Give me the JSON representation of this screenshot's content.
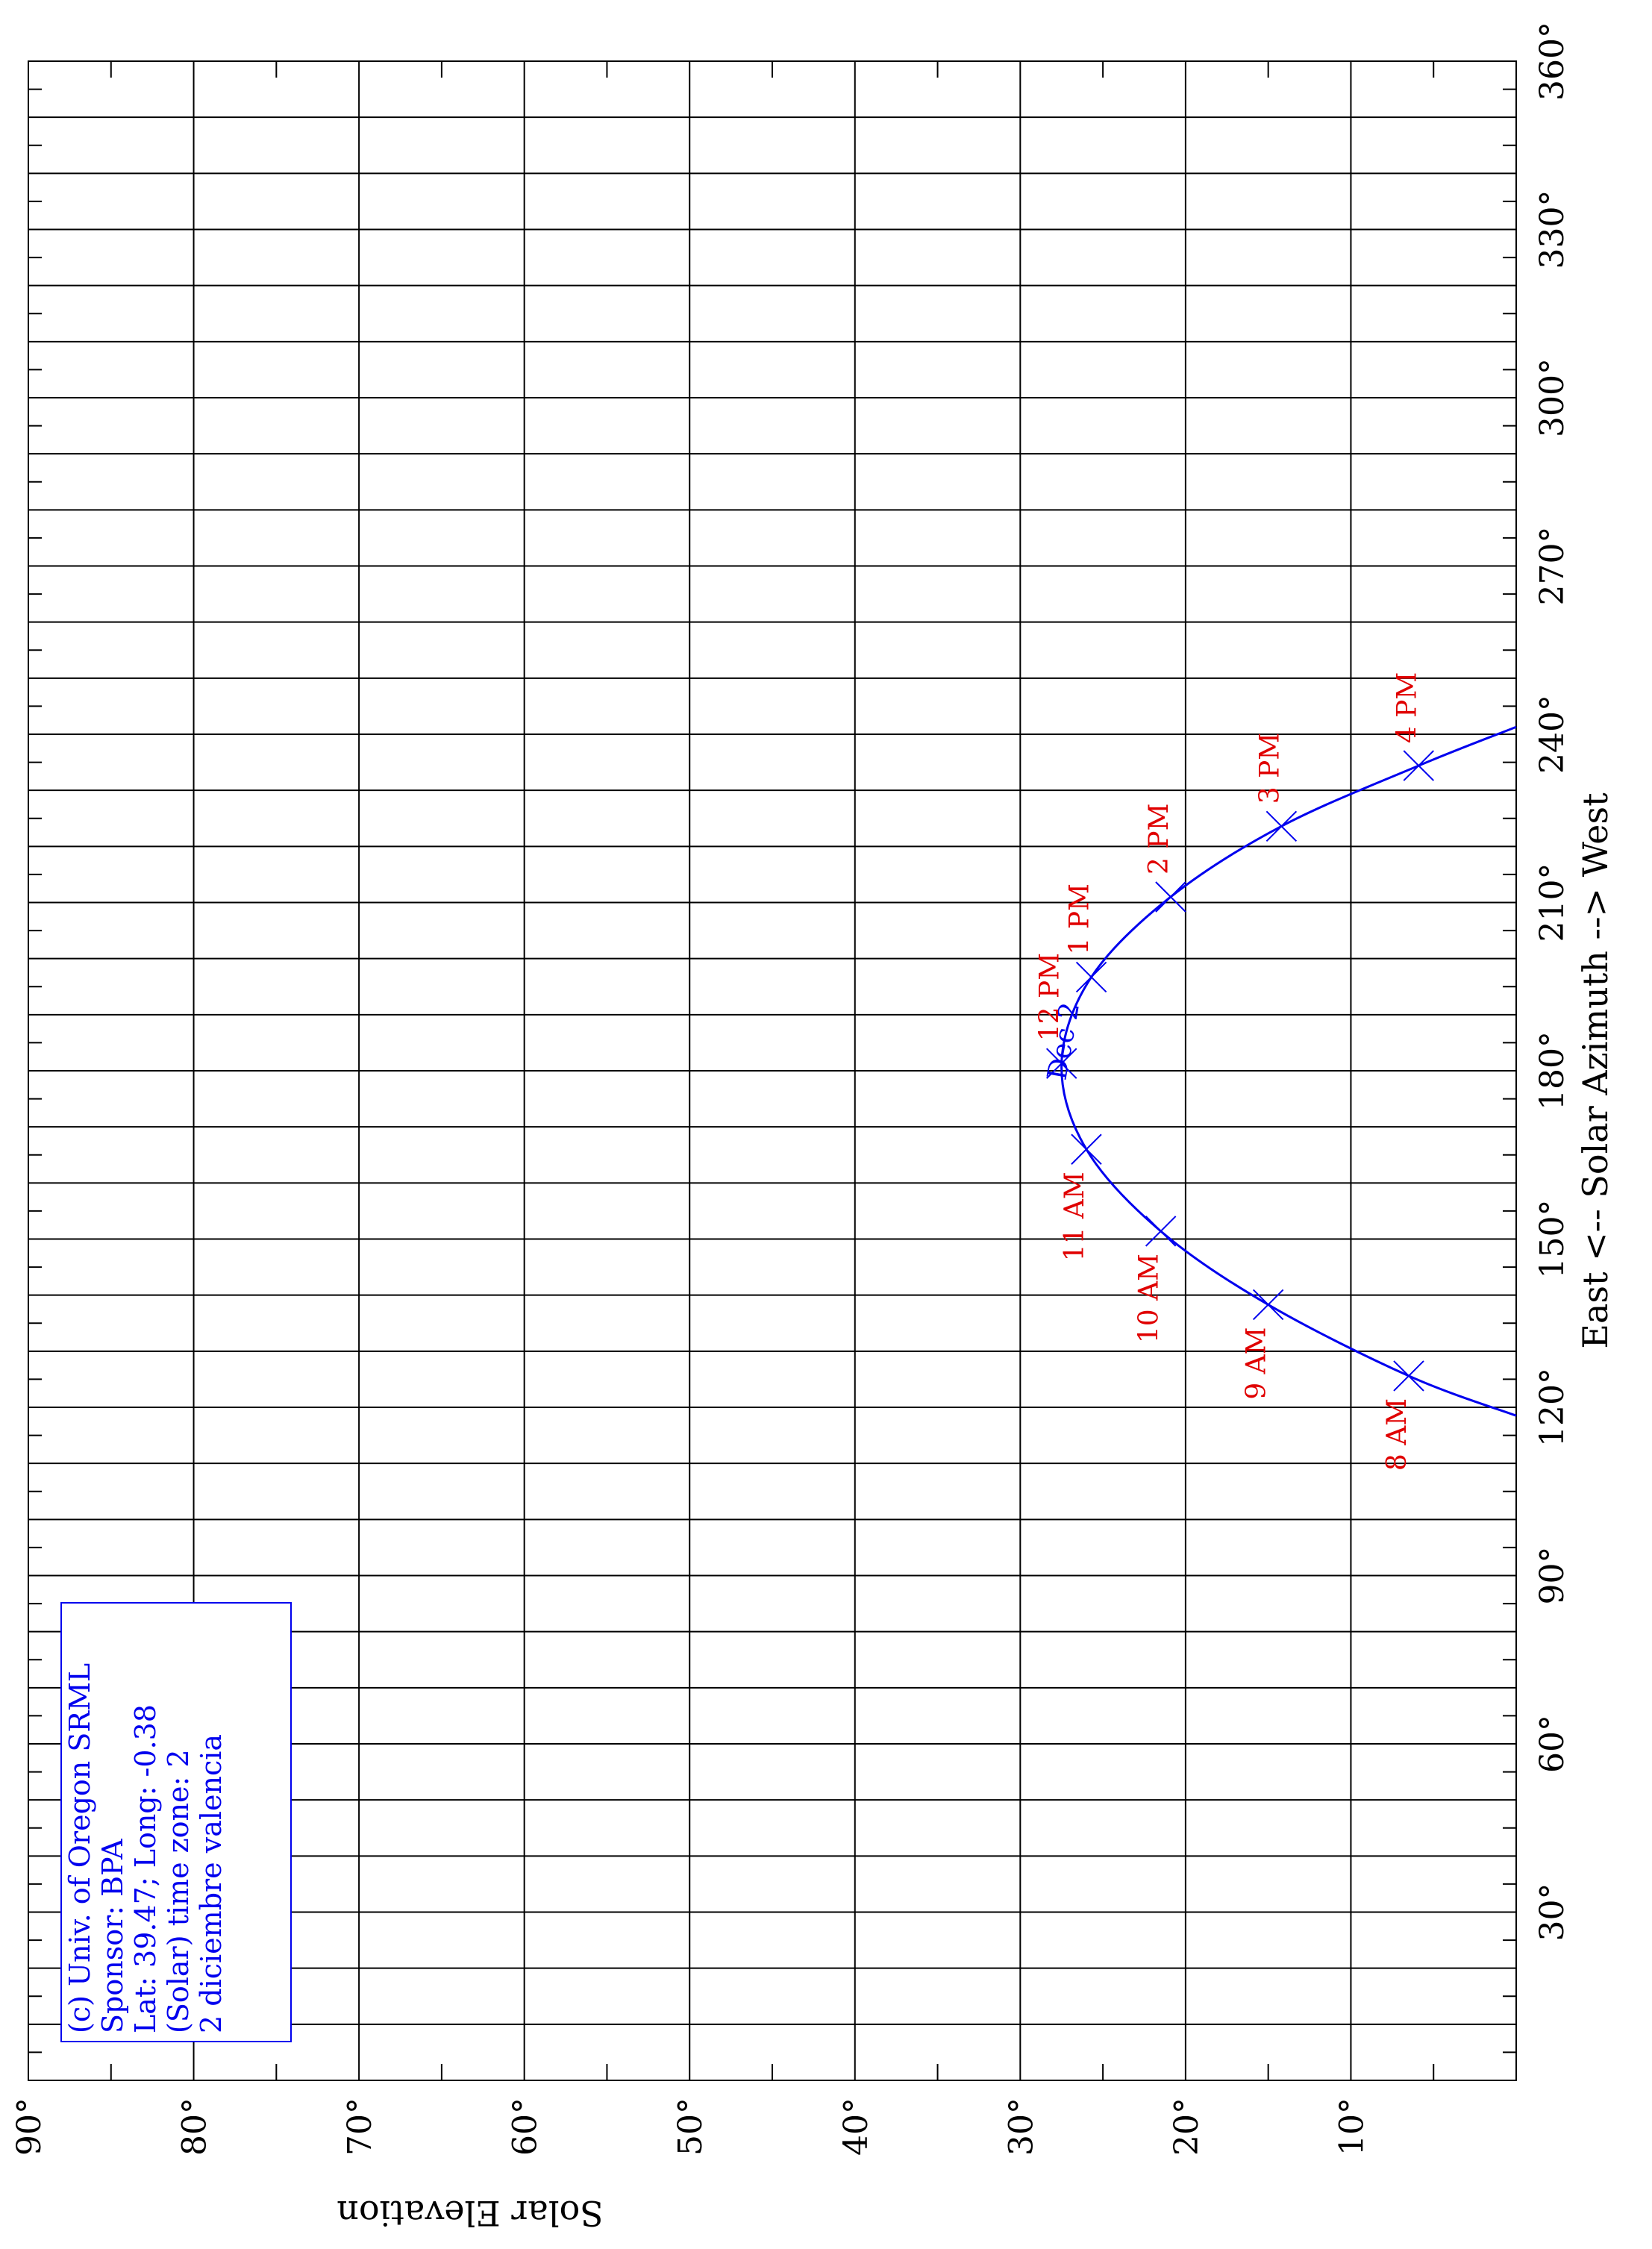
{
  "chart_data": {
    "type": "line",
    "orientation": "rotated-90",
    "x_axis": {
      "label": "East <-- Solar Azimuth --> West",
      "range": [
        0,
        360
      ],
      "ticks": [
        "30°",
        "60°",
        "90°",
        "120°",
        "150°",
        "180°",
        "210°",
        "240°",
        "270°",
        "300°",
        "330°",
        "360°"
      ],
      "tick_values": [
        30,
        60,
        90,
        120,
        150,
        180,
        210,
        240,
        270,
        300,
        330,
        360
      ]
    },
    "y_axis": {
      "label": "Solar Elevation",
      "range": [
        0,
        90
      ],
      "ticks": [
        "10°",
        "20°",
        "30°",
        "40°",
        "50°",
        "60°",
        "70°",
        "80°",
        "90°"
      ],
      "tick_values": [
        10,
        20,
        30,
        40,
        50,
        60,
        70,
        80,
        90
      ]
    },
    "grid": true,
    "series": [
      {
        "name": "Dec 2",
        "color": "#0000ee",
        "x": [
          118.5,
          125.6,
          138.3,
          151.4,
          166.0,
          181.3,
          196.7,
          211.0,
          223.6,
          234.4,
          241.3
        ],
        "y": [
          0,
          6.5,
          15.0,
          21.5,
          26.0,
          27.5,
          25.7,
          20.9,
          14.2,
          5.9,
          0
        ]
      }
    ],
    "hour_markers": [
      {
        "label": "8 AM",
        "azimuth": 125.6,
        "elevation": 6.5
      },
      {
        "label": "9 AM",
        "azimuth": 138.3,
        "elevation": 15.0
      },
      {
        "label": "10 AM",
        "azimuth": 151.4,
        "elevation": 21.5
      },
      {
        "label": "11 AM",
        "azimuth": 166.0,
        "elevation": 26.0
      },
      {
        "label": "12 PM",
        "azimuth": 181.3,
        "elevation": 27.5
      },
      {
        "label": "1 PM",
        "azimuth": 196.7,
        "elevation": 25.7
      },
      {
        "label": "2 PM",
        "azimuth": 211.0,
        "elevation": 20.9
      },
      {
        "label": "3 PM",
        "azimuth": 223.6,
        "elevation": 14.2
      },
      {
        "label": "4 PM",
        "azimuth": 234.4,
        "elevation": 5.9
      }
    ],
    "curve_label": "Dec 2",
    "info_box": [
      "(c) Univ. of Oregon SRML",
      "Sponsor: BPA",
      "Lat: 39.47; Long: -0.38",
      "(Solar) time zone: 2",
      "2 diciembre valencia"
    ]
  }
}
